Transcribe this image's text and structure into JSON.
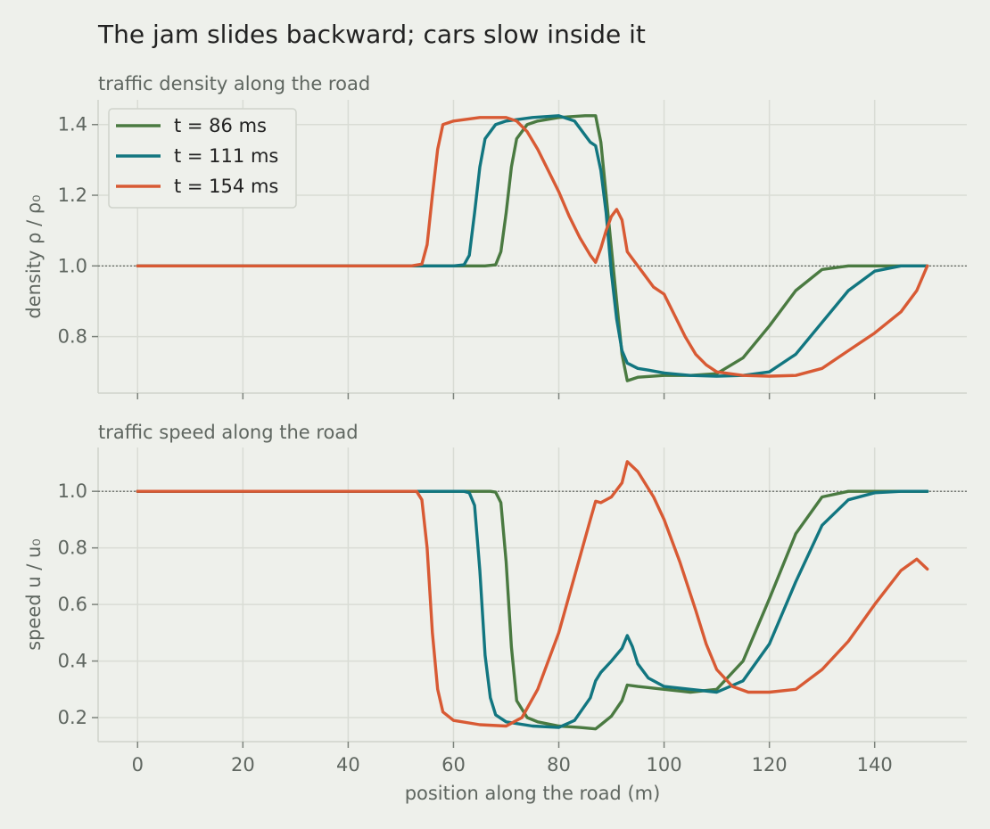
{
  "title": "The jam slides backward; cars slow inside it",
  "xlabel": "position along the road  (m)",
  "colors": {
    "t86": "#4a7a41",
    "t111": "#127680",
    "t154": "#d85a34"
  },
  "chart_data": [
    {
      "type": "line",
      "title": "traffic density along the road",
      "ylabel": "density  ρ / ρ₀",
      "xlim": [
        -7.5,
        157.5
      ],
      "ylim": [
        0.64,
        1.47
      ],
      "xticks": [
        0,
        20,
        40,
        60,
        80,
        100,
        120,
        140
      ],
      "yticks": [
        0.8,
        1.0,
        1.2,
        1.4
      ],
      "reference_line": 1.0,
      "legend": "top-left",
      "grid": true,
      "series": [
        {
          "name": "t = 86 ms",
          "color": "#4a7a41",
          "x": [
            0,
            66,
            68,
            69,
            70,
            71,
            72,
            74,
            76,
            80,
            85,
            87,
            88,
            89,
            90,
            91,
            92,
            93,
            95,
            100,
            105,
            110,
            115,
            120,
            125,
            130,
            135,
            140,
            145,
            150
          ],
          "y": [
            1.0,
            1.0,
            1.003,
            1.04,
            1.15,
            1.28,
            1.36,
            1.4,
            1.41,
            1.42,
            1.425,
            1.425,
            1.35,
            1.2,
            1.05,
            0.9,
            0.75,
            0.675,
            0.685,
            0.69,
            0.69,
            0.695,
            0.74,
            0.83,
            0.93,
            0.99,
            1.0,
            1.0,
            1.0,
            1.0
          ]
        },
        {
          "name": "t = 111 ms",
          "color": "#127680",
          "x": [
            0,
            60,
            62,
            63,
            64,
            65,
            66,
            68,
            70,
            75,
            80,
            83,
            86,
            87,
            88,
            89,
            90,
            91,
            92,
            93,
            95,
            97,
            100,
            105,
            110,
            115,
            120,
            125,
            130,
            135,
            140,
            145,
            150
          ],
          "y": [
            1.0,
            1.0,
            1.003,
            1.03,
            1.15,
            1.28,
            1.36,
            1.4,
            1.41,
            1.42,
            1.425,
            1.41,
            1.35,
            1.34,
            1.27,
            1.15,
            0.98,
            0.85,
            0.76,
            0.725,
            0.71,
            0.705,
            0.697,
            0.69,
            0.688,
            0.69,
            0.7,
            0.75,
            0.84,
            0.93,
            0.985,
            1.0,
            1.0
          ]
        },
        {
          "name": "t = 154 ms",
          "color": "#d85a34",
          "x": [
            0,
            52,
            54,
            55,
            56,
            57,
            58,
            60,
            65,
            70,
            72,
            74,
            76,
            78,
            80,
            82,
            84,
            86,
            87,
            88,
            89,
            90,
            91,
            92,
            93,
            94,
            96,
            98,
            100,
            102,
            104,
            106,
            108,
            110,
            115,
            120,
            125,
            130,
            135,
            140,
            145,
            148,
            150
          ],
          "y": [
            1.0,
            1.0,
            1.005,
            1.06,
            1.2,
            1.33,
            1.4,
            1.41,
            1.42,
            1.42,
            1.41,
            1.38,
            1.33,
            1.27,
            1.21,
            1.14,
            1.08,
            1.03,
            1.01,
            1.05,
            1.1,
            1.14,
            1.16,
            1.13,
            1.04,
            1.02,
            0.98,
            0.94,
            0.92,
            0.86,
            0.8,
            0.75,
            0.72,
            0.7,
            0.69,
            0.688,
            0.69,
            0.71,
            0.76,
            0.81,
            0.87,
            0.93,
            1.0
          ]
        }
      ]
    },
    {
      "type": "line",
      "title": "traffic speed along the road",
      "ylabel": "speed  u / u₀",
      "xlim": [
        -7.5,
        157.5
      ],
      "ylim": [
        0.115,
        1.155
      ],
      "xticks": [
        0,
        20,
        40,
        60,
        80,
        100,
        120,
        140
      ],
      "yticks": [
        0.2,
        0.4,
        0.6,
        0.8,
        1.0
      ],
      "reference_line": 1.0,
      "grid": true,
      "series": [
        {
          "name": "t = 86 ms",
          "color": "#4a7a41",
          "x": [
            0,
            67,
            68,
            69,
            70,
            71,
            72,
            74,
            76,
            80,
            84,
            87,
            88,
            90,
            92,
            93,
            95,
            100,
            105,
            110,
            115,
            120,
            125,
            130,
            135,
            140,
            145,
            150
          ],
          "y": [
            1.0,
            1.0,
            0.997,
            0.96,
            0.75,
            0.45,
            0.26,
            0.2,
            0.185,
            0.17,
            0.165,
            0.16,
            0.175,
            0.205,
            0.26,
            0.315,
            0.31,
            0.3,
            0.29,
            0.3,
            0.4,
            0.62,
            0.85,
            0.98,
            1.0,
            1.0,
            1.0,
            1.0
          ]
        },
        {
          "name": "t = 111 ms",
          "color": "#127680",
          "x": [
            0,
            62,
            63,
            64,
            65,
            66,
            67,
            68,
            70,
            75,
            80,
            83,
            86,
            87,
            88,
            90,
            92,
            93,
            94,
            95,
            97,
            100,
            105,
            110,
            115,
            120,
            125,
            130,
            135,
            140,
            145,
            150
          ],
          "y": [
            1.0,
            1.0,
            0.995,
            0.95,
            0.72,
            0.42,
            0.27,
            0.21,
            0.185,
            0.17,
            0.165,
            0.19,
            0.27,
            0.33,
            0.36,
            0.4,
            0.445,
            0.49,
            0.45,
            0.39,
            0.34,
            0.31,
            0.3,
            0.29,
            0.33,
            0.46,
            0.68,
            0.88,
            0.97,
            0.995,
            1.0,
            1.0
          ]
        },
        {
          "name": "t = 154 ms",
          "color": "#d85a34",
          "x": [
            0,
            53,
            54,
            55,
            56,
            57,
            58,
            60,
            65,
            70,
            73,
            76,
            80,
            83,
            86,
            87,
            88,
            90,
            92,
            93,
            95,
            98,
            100,
            103,
            106,
            108,
            110,
            113,
            116,
            120,
            125,
            130,
            135,
            140,
            145,
            148,
            150
          ],
          "y": [
            1.0,
            1.0,
            0.97,
            0.8,
            0.5,
            0.3,
            0.22,
            0.19,
            0.175,
            0.17,
            0.2,
            0.3,
            0.5,
            0.7,
            0.9,
            0.965,
            0.96,
            0.98,
            1.03,
            1.105,
            1.07,
            0.98,
            0.9,
            0.75,
            0.58,
            0.46,
            0.37,
            0.31,
            0.29,
            0.29,
            0.3,
            0.37,
            0.47,
            0.6,
            0.72,
            0.76,
            0.725
          ]
        }
      ]
    }
  ]
}
